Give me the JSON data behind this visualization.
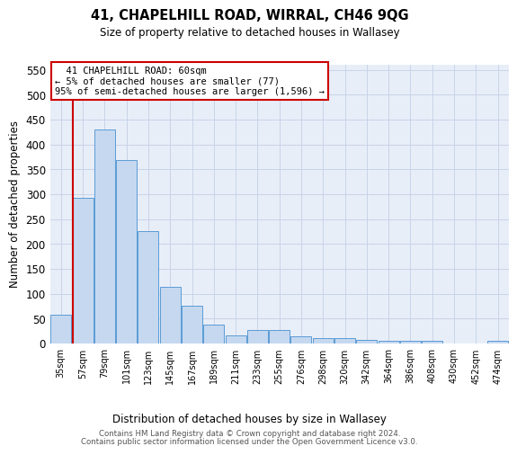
{
  "title": "41, CHAPELHILL ROAD, WIRRAL, CH46 9QG",
  "subtitle": "Size of property relative to detached houses in Wallasey",
  "xlabel": "Distribution of detached houses by size in Wallasey",
  "ylabel": "Number of detached properties",
  "footer1": "Contains HM Land Registry data © Crown copyright and database right 2024.",
  "footer2": "Contains public sector information licensed under the Open Government Licence v3.0.",
  "annotation_title": "41 CHAPELHILL ROAD: 60sqm",
  "annotation_line2": "← 5% of detached houses are smaller (77)",
  "annotation_line3": "95% of semi-detached houses are larger (1,596) →",
  "bar_categories": [
    "35sqm",
    "57sqm",
    "79sqm",
    "101sqm",
    "123sqm",
    "145sqm",
    "167sqm",
    "189sqm",
    "211sqm",
    "233sqm",
    "255sqm",
    "276sqm",
    "298sqm",
    "320sqm",
    "342sqm",
    "364sqm",
    "386sqm",
    "408sqm",
    "430sqm",
    "452sqm",
    "474sqm"
  ],
  "bar_values": [
    57,
    293,
    430,
    368,
    225,
    113,
    76,
    38,
    17,
    27,
    27,
    15,
    10,
    10,
    8,
    5,
    5,
    5,
    0,
    0,
    5
  ],
  "bar_color": "#c5d8f0",
  "bar_edge_color": "#5b9bd5",
  "vline_color": "#cc0000",
  "annotation_box_color": "#ffffff",
  "annotation_box_edge": "#cc0000",
  "ylim": [
    0,
    560
  ],
  "yticks": [
    0,
    50,
    100,
    150,
    200,
    250,
    300,
    350,
    400,
    450,
    500,
    550
  ],
  "grid_color": "#c8d4e8",
  "background_color": "#e8eef8"
}
